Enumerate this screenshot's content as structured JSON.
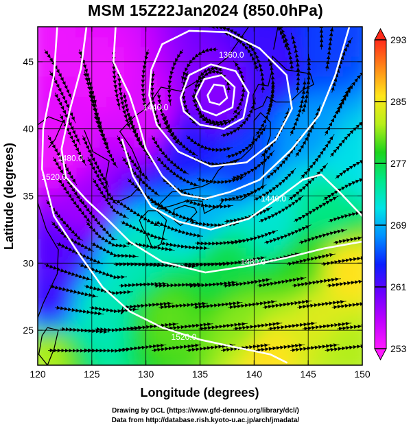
{
  "title": "MSM 15Z22Jan2024 (850.0hPa)",
  "colors": {
    "background": "#ffffff",
    "contour": "#ffffff",
    "streamline": "#000000",
    "coastline": "#000000",
    "gridline": "#000000"
  },
  "chart_data": {
    "type": "heatmap",
    "title": "MSM 15Z22Jan2024 (850.0hPa)",
    "xlabel": "Longitude (degrees)",
    "ylabel": "Latitude  (degrees)",
    "xlim": [
      120,
      150
    ],
    "ylim": [
      22.4,
      47.6
    ],
    "x_ticks": [
      "120",
      "125",
      "130",
      "135",
      "140",
      "145",
      "150"
    ],
    "y_ticks": [
      "25",
      "30",
      "35",
      "40",
      "45"
    ],
    "grid": true,
    "colorbar": {
      "min": 253,
      "max": 293,
      "tick_labels": [
        "293",
        "285",
        "277",
        "269",
        "261",
        "253"
      ],
      "palette": [
        "#ff1aff",
        "#bf00ff",
        "#6a00ff",
        "#0a1fff",
        "#0090ff",
        "#00e4e6",
        "#00e88a",
        "#1cd41c",
        "#b7ef1a",
        "#ffe61a",
        "#ff8a18",
        "#ff2a1a"
      ]
    },
    "color_field_anchors": [
      {
        "lon": 120.5,
        "lat": 46.5,
        "value": 254
      },
      {
        "lon": 126.0,
        "lat": 44.0,
        "value": 254
      },
      {
        "lon": 130.0,
        "lat": 41.0,
        "value": 255
      },
      {
        "lon": 122.0,
        "lat": 38.0,
        "value": 254
      },
      {
        "lon": 124.0,
        "lat": 34.5,
        "value": 258
      },
      {
        "lon": 121.5,
        "lat": 30.0,
        "value": 261
      },
      {
        "lon": 121.0,
        "lat": 27.0,
        "value": 262
      },
      {
        "lon": 136.5,
        "lat": 42.5,
        "value": 259
      },
      {
        "lon": 142.0,
        "lat": 45.0,
        "value": 262
      },
      {
        "lon": 146.5,
        "lat": 46.0,
        "value": 265
      },
      {
        "lon": 134.0,
        "lat": 38.5,
        "value": 263
      },
      {
        "lon": 139.0,
        "lat": 37.5,
        "value": 265
      },
      {
        "lon": 145.0,
        "lat": 40.0,
        "value": 268
      },
      {
        "lon": 149.0,
        "lat": 37.5,
        "value": 271
      },
      {
        "lon": 135.0,
        "lat": 33.5,
        "value": 269
      },
      {
        "lon": 142.0,
        "lat": 33.0,
        "value": 272
      },
      {
        "lon": 147.0,
        "lat": 34.0,
        "value": 275
      },
      {
        "lon": 129.0,
        "lat": 30.5,
        "value": 273
      },
      {
        "lon": 137.0,
        "lat": 30.0,
        "value": 277
      },
      {
        "lon": 144.5,
        "lat": 30.0,
        "value": 279
      },
      {
        "lon": 148.5,
        "lat": 29.5,
        "value": 286
      },
      {
        "lon": 125.5,
        "lat": 26.5,
        "value": 273
      },
      {
        "lon": 132.0,
        "lat": 26.0,
        "value": 280
      },
      {
        "lon": 139.0,
        "lat": 25.5,
        "value": 281
      },
      {
        "lon": 146.0,
        "lat": 26.0,
        "value": 284
      },
      {
        "lon": 141.0,
        "lat": 23.2,
        "value": 286
      },
      {
        "lon": 148.5,
        "lat": 23.5,
        "value": 282
      },
      {
        "lon": 121.0,
        "lat": 23.5,
        "value": 282
      }
    ],
    "contours": [
      {
        "label": "1360.0",
        "label_lon": 137.9,
        "label_lat": 45.3,
        "points": [
          [
            130.5,
            44.4
          ],
          [
            131.5,
            46.3
          ],
          [
            134,
            47.3
          ],
          [
            137.5,
            47.2
          ],
          [
            140.5,
            46.0
          ],
          [
            143.0,
            44.0
          ],
          [
            143.5,
            41.5
          ],
          [
            142.0,
            39.2
          ],
          [
            139.3,
            37.5
          ],
          [
            136.0,
            37.2
          ],
          [
            133.0,
            38.3
          ],
          [
            131.0,
            40.3
          ],
          [
            130.3,
            42.5
          ],
          [
            130.5,
            44.4
          ]
        ]
      },
      {
        "label": "",
        "label_lon": 0,
        "label_lat": 0,
        "points": [
          [
            133.2,
            42.3
          ],
          [
            134.0,
            44.0
          ],
          [
            136.0,
            44.8
          ],
          [
            138.3,
            44.3
          ],
          [
            139.5,
            42.7
          ],
          [
            139.0,
            40.8
          ],
          [
            137.2,
            40.0
          ],
          [
            135.0,
            40.3
          ],
          [
            133.5,
            41.3
          ],
          [
            133.2,
            42.3
          ]
        ]
      },
      {
        "label": "",
        "label_lon": 0,
        "label_lat": 0,
        "points": [
          [
            134.6,
            42.4
          ],
          [
            135.4,
            43.7
          ],
          [
            137.0,
            44.0
          ],
          [
            138.2,
            43.1
          ],
          [
            138.0,
            41.6
          ],
          [
            136.5,
            41.0
          ],
          [
            135.2,
            41.4
          ],
          [
            134.6,
            42.4
          ]
        ]
      },
      {
        "label": "",
        "label_lon": 0,
        "label_lat": 0,
        "points": [
          [
            135.7,
            42.5
          ],
          [
            136.3,
            43.3
          ],
          [
            137.2,
            43.2
          ],
          [
            137.5,
            42.3
          ],
          [
            136.8,
            41.8
          ],
          [
            135.9,
            42.0
          ],
          [
            135.7,
            42.5
          ]
        ]
      },
      {
        "label": "1440.0",
        "label_lon": 130.9,
        "label_lat": 41.4,
        "points": [
          [
            127.2,
            47.6
          ],
          [
            127.0,
            45.0
          ],
          [
            128.5,
            42.5
          ],
          [
            129.3,
            40.5
          ],
          [
            130.0,
            38.5
          ],
          [
            131.5,
            36.5
          ],
          [
            133.3,
            35.1
          ],
          [
            135.5,
            34.8
          ],
          [
            137.8,
            35.3
          ],
          [
            140.5,
            36.2
          ],
          [
            143.5,
            38.5
          ],
          [
            146.0,
            41.0
          ],
          [
            147.5,
            44.0
          ],
          [
            148.8,
            47.6
          ]
        ]
      },
      {
        "label": "1440.0",
        "label_lon": 141.8,
        "label_lat": 34.6,
        "points": [
          [
            127.8,
            39.2
          ],
          [
            128.8,
            36.5
          ],
          [
            130.5,
            34.2
          ],
          [
            133.0,
            33.1
          ],
          [
            136.0,
            32.5
          ],
          [
            139.5,
            33.3
          ],
          [
            142.5,
            35.0
          ],
          [
            144.5,
            36.2
          ],
          [
            146.2,
            36.6
          ],
          [
            148.0,
            35.2
          ],
          [
            150.0,
            33.5
          ]
        ]
      },
      {
        "label": "1480.0",
        "label_lon": 123.0,
        "label_lat": 37.6,
        "points": [
          [
            124.5,
            47.6
          ],
          [
            124.0,
            44.5
          ],
          [
            123.0,
            41.5
          ],
          [
            122.2,
            38.5
          ],
          [
            122.6,
            36.4
          ],
          [
            124.5,
            34.7
          ],
          [
            126.5,
            33.2
          ],
          [
            128.5,
            31.6
          ],
          [
            131.5,
            30.1
          ],
          [
            135.5,
            29.3
          ],
          [
            139.5,
            29.8
          ],
          [
            143.0,
            30.4
          ],
          [
            146.5,
            31.1
          ],
          [
            150.0,
            31.6
          ]
        ]
      },
      {
        "label": "1480.0",
        "label_lon": 139.9,
        "label_lat": 29.9,
        "points": []
      },
      {
        "label": "1520.0",
        "label_lon": 121.5,
        "label_lat": 36.2,
        "points": [
          [
            121.8,
            47.6
          ],
          [
            121.5,
            44.0
          ],
          [
            120.5,
            40.0
          ],
          [
            120.4,
            37.0
          ],
          [
            121.5,
            33.5
          ],
          [
            123.8,
            30.7
          ],
          [
            126.0,
            28.2
          ],
          [
            128.5,
            26.4
          ],
          [
            131.5,
            25.2
          ],
          [
            135.0,
            24.3
          ],
          [
            138.5,
            23.7
          ],
          [
            141.5,
            23.2
          ],
          [
            143.0,
            22.6
          ]
        ]
      },
      {
        "label": "1520.0",
        "label_lon": 133.5,
        "label_lat": 24.3,
        "points": []
      }
    ]
  },
  "axes": {
    "x_title": "Longitude (degrees)",
    "y_title": "Latitude  (degrees)"
  },
  "credits": {
    "line1": "Drawing by DCL (https://www.gfd-dennou.org/library/dcl/)",
    "line2": "Data from http://database.rish.kyoto-u.ac.jp/arch/jmadata/"
  }
}
